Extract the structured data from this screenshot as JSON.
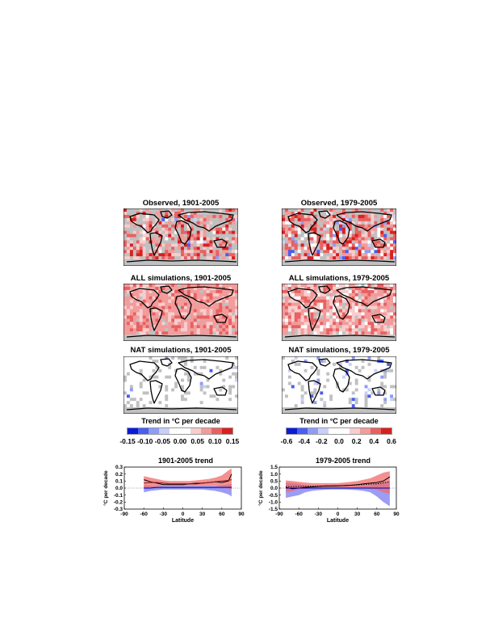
{
  "maps": [
    {
      "title": "Observed, 1901-2005",
      "variant": "obs-early"
    },
    {
      "title": "Observed, 1979-2005",
      "variant": "obs-late"
    },
    {
      "title": "ALL simulations, 1901-2005",
      "variant": "all-early"
    },
    {
      "title": "ALL simulations, 1979-2005",
      "variant": "all-late"
    },
    {
      "title": "NAT simulations, 1901-2005",
      "variant": "nat-early"
    },
    {
      "title": "NAT simulations, 1979-2005",
      "variant": "nat-late"
    }
  ],
  "colorbars": [
    {
      "title": "Trend in °C per decade",
      "ticks": [
        "-0.15",
        "-0.10",
        "-0.05",
        "0.00",
        "0.05",
        "0.10",
        "0.15"
      ],
      "colors": [
        "#0a1bd6",
        "#4a5ef0",
        "#8f9cf6",
        "#c9cffb",
        "#ffffff",
        "#ffffff",
        "#f8cdcd",
        "#f29b9b",
        "#e86060",
        "#d91f1f"
      ]
    },
    {
      "title": "Trend in °C per decade",
      "ticks": [
        "-0.6",
        "-0.4",
        "-0.2",
        "0.0",
        "0.2",
        "0.4",
        "0.6"
      ],
      "colors": [
        "#0a1bd6",
        "#4a5ef0",
        "#8f9cf6",
        "#c9cffb",
        "#ffffff",
        "#ffffff",
        "#f8cdcd",
        "#f29b9b",
        "#e86060",
        "#d91f1f"
      ]
    }
  ],
  "chart_data": [
    {
      "type": "area",
      "title": "1901-2005 trend",
      "xlabel": "Latitude",
      "ylabel": "°C per decade",
      "xlim": [
        -90,
        90
      ],
      "ylim": [
        -0.3,
        0.3
      ],
      "xticks": [
        "-90",
        "-60",
        "-30",
        "0",
        "30",
        "60",
        "90"
      ],
      "yticks": [
        "0.3",
        "0.2",
        "0.1",
        "0.0",
        "-0.1",
        "-0.2",
        "-0.3"
      ],
      "x": [
        -60,
        -50,
        -40,
        -30,
        -20,
        -10,
        0,
        10,
        20,
        30,
        40,
        50,
        60,
        70,
        75
      ],
      "series": [
        {
          "role": "observed",
          "color": "#000000",
          "values": [
            0.12,
            0.09,
            0.07,
            0.05,
            0.05,
            0.05,
            0.05,
            0.06,
            0.06,
            0.07,
            0.08,
            0.09,
            0.08,
            0.1,
            0.2
          ]
        },
        {
          "role": "all-mean",
          "color": "#7a1e1e",
          "values": [
            0.07,
            0.08,
            0.08,
            0.07,
            0.06,
            0.06,
            0.06,
            0.06,
            0.07,
            0.07,
            0.08,
            0.09,
            0.1,
            0.11,
            0.12
          ]
        },
        {
          "role": "all-upper",
          "values": [
            0.17,
            0.15,
            0.13,
            0.11,
            0.1,
            0.1,
            0.1,
            0.1,
            0.11,
            0.12,
            0.13,
            0.15,
            0.18,
            0.25,
            0.28
          ]
        },
        {
          "role": "all-lower",
          "values": [
            0.0,
            0.01,
            0.02,
            0.03,
            0.03,
            0.03,
            0.03,
            0.03,
            0.03,
            0.03,
            0.03,
            0.03,
            0.02,
            0.0,
            -0.02
          ]
        },
        {
          "role": "nat-mean",
          "color": "#0000aa",
          "values": [
            0.0,
            0.0,
            0.01,
            0.01,
            0.01,
            0.01,
            0.01,
            0.01,
            0.01,
            0.01,
            0.01,
            0.01,
            0.01,
            0.01,
            0.01
          ]
        },
        {
          "role": "nat-upper",
          "values": [
            0.04,
            0.03,
            0.03,
            0.03,
            0.03,
            0.03,
            0.03,
            0.03,
            0.03,
            0.03,
            0.03,
            0.03,
            0.04,
            0.05,
            0.06
          ]
        },
        {
          "role": "nat-lower",
          "values": [
            -0.06,
            -0.04,
            -0.03,
            -0.02,
            -0.02,
            -0.02,
            -0.02,
            -0.02,
            -0.02,
            -0.02,
            -0.03,
            -0.04,
            -0.06,
            -0.09,
            -0.12
          ]
        }
      ]
    },
    {
      "type": "area",
      "title": "1979-2005 trend",
      "xlabel": "Latitude",
      "ylabel": "°C per decade",
      "xlim": [
        -90,
        90
      ],
      "ylim": [
        -1.5,
        1.5
      ],
      "xticks": [
        "-90",
        "-60",
        "-30",
        "0",
        "30",
        "60",
        "90"
      ],
      "yticks": [
        "1.5",
        "1.0",
        "0.5",
        "0.0",
        "-0.5",
        "-1.0",
        "-1.5"
      ],
      "x": [
        -80,
        -70,
        -60,
        -50,
        -40,
        -30,
        -20,
        -10,
        0,
        10,
        20,
        30,
        40,
        50,
        60,
        70,
        80
      ],
      "series": [
        {
          "role": "observed",
          "color": "#000000",
          "values": [
            0.05,
            -0.05,
            0.0,
            0.05,
            0.08,
            0.12,
            0.15,
            0.15,
            0.16,
            0.18,
            0.2,
            0.25,
            0.3,
            0.35,
            0.4,
            0.5,
            0.8
          ]
        },
        {
          "role": "all-mean",
          "color": "#000000",
          "dotted": true,
          "values": [
            0.1,
            0.1,
            0.12,
            0.12,
            0.13,
            0.14,
            0.15,
            0.16,
            0.17,
            0.18,
            0.2,
            0.22,
            0.25,
            0.28,
            0.3,
            0.38,
            0.45
          ]
        },
        {
          "role": "all-upper",
          "values": [
            0.55,
            0.5,
            0.45,
            0.4,
            0.35,
            0.35,
            0.35,
            0.35,
            0.35,
            0.4,
            0.45,
            0.5,
            0.6,
            0.7,
            0.9,
            1.1,
            1.2
          ]
        },
        {
          "role": "all-lower",
          "values": [
            -0.3,
            -0.2,
            -0.1,
            -0.05,
            0.0,
            0.02,
            0.03,
            0.04,
            0.05,
            0.05,
            0.05,
            0.02,
            0.0,
            -0.05,
            -0.1,
            -0.3,
            -0.4
          ]
        },
        {
          "role": "nat-mean",
          "color": "#0000aa",
          "values": [
            0.0,
            0.0,
            0.0,
            0.0,
            0.0,
            0.0,
            0.0,
            0.0,
            0.0,
            0.0,
            0.0,
            0.0,
            0.0,
            0.0,
            0.0,
            0.0,
            0.0
          ]
        },
        {
          "role": "nat-upper",
          "values": [
            0.4,
            0.35,
            0.3,
            0.2,
            0.15,
            0.12,
            0.1,
            0.1,
            0.1,
            0.1,
            0.1,
            0.12,
            0.15,
            0.2,
            0.3,
            0.4,
            0.5
          ]
        },
        {
          "role": "nat-lower",
          "values": [
            -0.7,
            -0.6,
            -0.5,
            -0.3,
            -0.2,
            -0.15,
            -0.12,
            -0.1,
            -0.1,
            -0.1,
            -0.12,
            -0.15,
            -0.2,
            -0.3,
            -0.6,
            -1.0,
            -1.3
          ]
        }
      ]
    }
  ],
  "colors": {
    "land_mask": "#c0c0c0",
    "all_band": "#f26b6b",
    "nat_band": "#7b7bf2"
  }
}
